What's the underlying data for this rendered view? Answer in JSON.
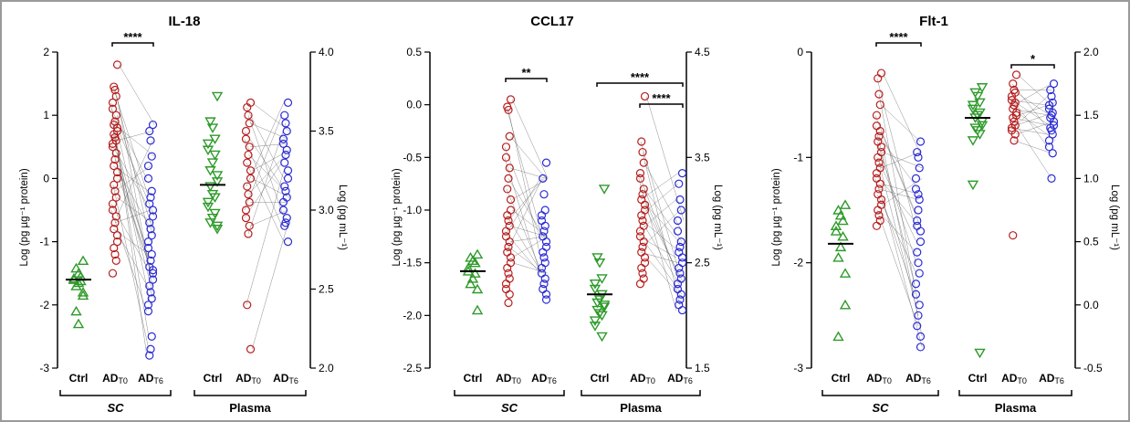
{
  "colors": {
    "ctrl": "#2e9a2a",
    "ad_t0": "#b81e1e",
    "ad_t6": "#2b2bd6",
    "frame": "#9a9a9a"
  },
  "markers": {
    "ctrl": "triangle",
    "ad_t0": "circle",
    "ad_t6": "circle"
  },
  "category_labels": [
    "Ctrl",
    "AD",
    "AD"
  ],
  "category_subscripts": [
    "",
    "T0",
    "T6"
  ],
  "group_labels": [
    "SC",
    "Plasma"
  ],
  "chart_data": [
    {
      "type": "scatter",
      "title": "IL-18",
      "ylabel": "Log (pg µg⁻¹ protein)",
      "y2label": "Log (pg mL⁻¹)",
      "ylim": [
        -3,
        2
      ],
      "y2lim": [
        2.0,
        4.0
      ],
      "yticks": [
        "-3",
        "-2",
        "-1",
        "0",
        "1",
        "2"
      ],
      "y2ticks": [
        "2.0",
        "2.5",
        "3.0",
        "3.5",
        "4.0"
      ],
      "significance": [
        {
          "group": "SC",
          "from": "AD T0",
          "to": "AD T6",
          "label": "****",
          "level": 0
        }
      ],
      "groups": [
        {
          "name": "SC",
          "axis": "left",
          "ctrl": [
            -1.3,
            -1.42,
            -1.5,
            -1.55,
            -1.58,
            -1.6,
            -1.62,
            -1.65,
            -1.7,
            -1.8,
            -1.85,
            -2.1,
            -2.3
          ],
          "ctrl_mean": -1.6,
          "ad_t0": [
            1.8,
            1.45,
            1.4,
            1.3,
            1.2,
            1.1,
            1.0,
            0.9,
            0.85,
            0.8,
            0.75,
            0.7,
            0.65,
            0.6,
            0.55,
            0.5,
            0.4,
            0.3,
            0.2,
            0.1,
            0.0,
            -0.1,
            -0.2,
            -0.3,
            -0.4,
            -0.5,
            -0.6,
            -0.7,
            -0.8,
            -0.9,
            -1.0,
            -1.1,
            -1.2,
            -1.3,
            -1.5
          ],
          "ad_t6": [
            0.85,
            0.75,
            0.6,
            0.35,
            0.2,
            0.0,
            -0.2,
            -0.3,
            -0.4,
            -0.5,
            -0.6,
            -0.7,
            -0.8,
            -0.9,
            -1.0,
            -1.1,
            -1.2,
            -1.3,
            -1.4,
            -1.5,
            -1.6,
            -1.7,
            -1.8,
            -1.9,
            -2.0,
            -2.1,
            -2.5,
            -2.7,
            -2.8,
            -1.45
          ]
        },
        {
          "name": "Plasma",
          "axis": "right",
          "ctrl": [
            3.72,
            3.56,
            3.52,
            3.45,
            3.42,
            3.38,
            3.35,
            3.3,
            3.25,
            3.22,
            3.18,
            3.15,
            3.1,
            3.08,
            3.05,
            3.02,
            2.98,
            2.95,
            2.92,
            2.9,
            2.88
          ],
          "ctrl_mean": 3.16,
          "ad_t0": [
            3.68,
            3.65,
            3.6,
            3.55,
            3.5,
            3.45,
            3.4,
            3.35,
            3.3,
            3.25,
            3.2,
            3.15,
            3.1,
            3.05,
            3.0,
            2.95,
            2.9,
            2.85,
            2.4,
            2.12
          ],
          "ad_t6": [
            3.68,
            3.6,
            3.55,
            3.5,
            3.45,
            3.42,
            3.38,
            3.35,
            3.3,
            3.25,
            3.2,
            3.15,
            3.12,
            3.08,
            3.05,
            3.0,
            2.95,
            2.92,
            2.9,
            2.8
          ]
        }
      ]
    },
    {
      "type": "scatter",
      "title": "CCL17",
      "ylabel": "Log (pg µg⁻¹ protein)",
      "y2label": "Log (pg mL⁻¹)",
      "ylim": [
        -2.5,
        0.5
      ],
      "y2lim": [
        1.5,
        4.5
      ],
      "yticks": [
        "-2.5",
        "-2.0",
        "-1.5",
        "-1.0",
        "-0.5",
        "0.0",
        "0.5"
      ],
      "y2ticks": [
        "1.5",
        "2.5",
        "3.5",
        "4.5"
      ],
      "significance": [
        {
          "group": "SC",
          "from": "AD T0",
          "to": "AD T6",
          "label": "**",
          "level": 0
        },
        {
          "group": "Plasma",
          "from": "Ctrl",
          "to": "AD T6",
          "label": "****",
          "level": 1
        },
        {
          "group": "Plasma",
          "from": "AD T0",
          "to": "AD T6",
          "label": "****",
          "level": 0
        }
      ],
      "groups": [
        {
          "name": "SC",
          "axis": "left",
          "ctrl": [
            -1.42,
            -1.45,
            -1.48,
            -1.5,
            -1.55,
            -1.58,
            -1.6,
            -1.65,
            -1.7,
            -1.75,
            -1.95
          ],
          "ctrl_mean": -1.58,
          "ad_t0": [
            0.05,
            -0.02,
            -0.05,
            -0.3,
            -0.4,
            -0.5,
            -0.6,
            -0.7,
            -0.8,
            -0.9,
            -1.0,
            -1.05,
            -1.1,
            -1.15,
            -1.2,
            -1.25,
            -1.3,
            -1.35,
            -1.4,
            -1.45,
            -1.5,
            -1.55,
            -1.6,
            -1.65,
            -1.7,
            -1.75,
            -1.8,
            -1.88
          ],
          "ad_t6": [
            -0.55,
            -0.7,
            -0.85,
            -1.0,
            -1.05,
            -1.1,
            -1.15,
            -1.2,
            -1.25,
            -1.3,
            -1.35,
            -1.4,
            -1.45,
            -1.5,
            -1.55,
            -1.6,
            -1.65,
            -1.7,
            -1.75,
            -1.8,
            -1.85
          ]
        },
        {
          "name": "Plasma",
          "axis": "right",
          "ctrl": [
            3.2,
            2.55,
            2.5,
            2.35,
            2.3,
            2.25,
            2.2,
            2.15,
            2.12,
            2.1,
            2.08,
            2.05,
            2.02,
            2.0,
            1.95,
            1.9,
            1.8
          ],
          "ctrl_mean": 2.2,
          "ad_t0": [
            4.08,
            3.65,
            3.55,
            3.45,
            3.35,
            3.3,
            3.2,
            3.15,
            3.1,
            3.05,
            3.0,
            2.95,
            2.9,
            2.85,
            2.8,
            2.75,
            2.7,
            2.65,
            2.6,
            2.55,
            2.5,
            2.45,
            2.4,
            2.35,
            2.3
          ],
          "ad_t6": [
            3.35,
            3.25,
            3.1,
            3.0,
            2.9,
            2.8,
            2.7,
            2.65,
            2.6,
            2.55,
            2.5,
            2.45,
            2.4,
            2.35,
            2.3,
            2.25,
            2.2,
            2.15,
            2.1,
            2.05
          ]
        }
      ]
    },
    {
      "type": "scatter",
      "title": "Flt-1",
      "ylabel": "Log (pg µg⁻¹ protein)",
      "y2label": "Log (pg mL⁻¹)",
      "ylim": [
        -3,
        0
      ],
      "y2lim": [
        -0.5,
        2.0
      ],
      "yticks": [
        "-3",
        "-2",
        "-1",
        "0"
      ],
      "y2ticks": [
        "-0.5",
        "0.0",
        "0.5",
        "1.0",
        "1.5",
        "2.0"
      ],
      "significance": [
        {
          "group": "SC",
          "from": "AD T0",
          "to": "AD T6",
          "label": "****",
          "level": 0
        },
        {
          "group": "Plasma",
          "from": "AD T0",
          "to": "AD T6",
          "label": "*",
          "level": 0
        }
      ],
      "groups": [
        {
          "name": "SC",
          "axis": "left",
          "ctrl": [
            -1.45,
            -1.5,
            -1.55,
            -1.6,
            -1.65,
            -1.7,
            -1.75,
            -1.85,
            -1.95,
            -2.1,
            -2.4,
            -2.7
          ],
          "ctrl_mean": -1.82,
          "ad_t0": [
            -0.2,
            -0.25,
            -0.4,
            -0.5,
            -0.6,
            -0.7,
            -0.75,
            -0.8,
            -0.85,
            -0.9,
            -0.95,
            -1.0,
            -1.05,
            -1.1,
            -1.15,
            -1.2,
            -1.25,
            -1.3,
            -1.35,
            -1.4,
            -1.45,
            -1.5,
            -1.55,
            -1.6,
            -1.65
          ],
          "ad_t6": [
            -0.85,
            -0.95,
            -1.0,
            -1.1,
            -1.2,
            -1.3,
            -1.4,
            -1.5,
            -1.6,
            -1.7,
            -1.8,
            -1.9,
            -2.0,
            -2.1,
            -2.2,
            -2.3,
            -2.4,
            -2.5,
            -2.6,
            -2.7,
            -2.8,
            -1.65,
            -1.35
          ]
        },
        {
          "name": "Plasma",
          "axis": "right",
          "ctrl": [
            1.72,
            1.68,
            1.65,
            1.6,
            1.58,
            1.55,
            1.52,
            1.5,
            1.48,
            1.45,
            1.42,
            1.4,
            1.38,
            1.35,
            1.3,
            0.95,
            -0.38
          ],
          "ctrl_mean": 1.48,
          "ad_t0": [
            1.82,
            1.75,
            1.7,
            1.68,
            1.65,
            1.62,
            1.6,
            1.58,
            1.55,
            1.52,
            1.5,
            1.48,
            1.45,
            1.42,
            1.4,
            1.38,
            1.35,
            1.3,
            0.55
          ],
          "ad_t6": [
            1.75,
            1.7,
            1.65,
            1.6,
            1.58,
            1.55,
            1.52,
            1.5,
            1.48,
            1.45,
            1.42,
            1.4,
            1.38,
            1.35,
            1.3,
            1.25,
            1.2,
            1.0
          ]
        }
      ]
    }
  ]
}
